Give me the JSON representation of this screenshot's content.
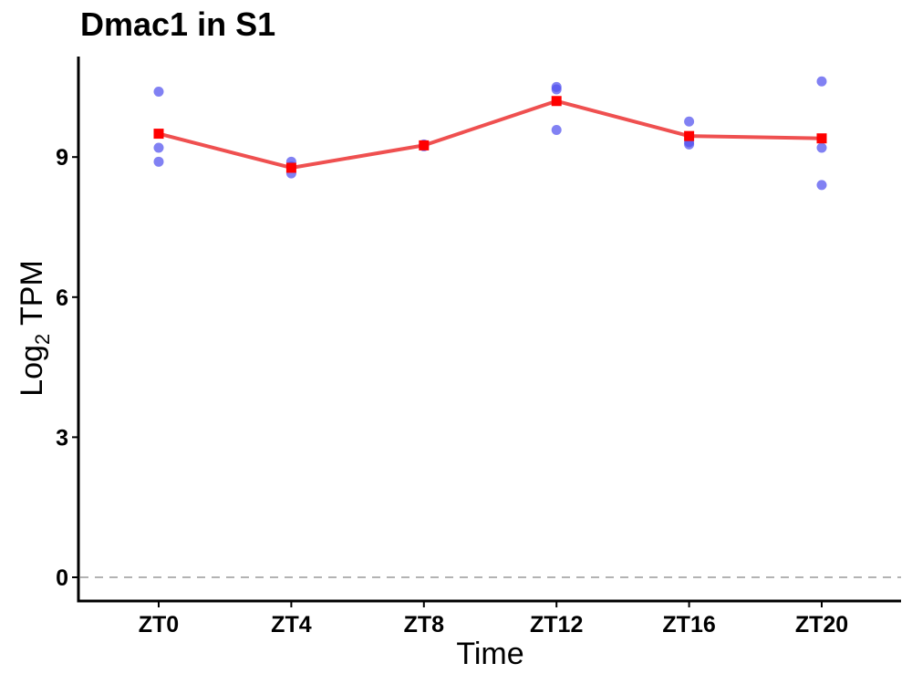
{
  "chart_data": {
    "type": "line",
    "title": "Dmac1 in S1",
    "xlabel": "Time",
    "ylabel": {
      "main": "Log",
      "subscript": "2",
      "suffix": " TPM"
    },
    "categories": [
      "ZT0",
      "ZT4",
      "ZT8",
      "ZT12",
      "ZT16",
      "ZT20"
    ],
    "ylim": [
      -0.5,
      11.1
    ],
    "yticks": [
      0,
      3,
      6,
      9
    ],
    "ytick_labels": [
      "0",
      "3",
      "6",
      "9"
    ],
    "reference_line": {
      "y": 0,
      "style": "dashed",
      "color": "#b3b3b3"
    },
    "series": [
      {
        "type": "line",
        "marker": "square",
        "color": "#ff0000",
        "line_color": "#ef5050",
        "values": [
          9.5,
          8.77,
          9.25,
          10.2,
          9.45,
          9.4
        ]
      },
      {
        "type": "scatter",
        "marker": "circle",
        "color": "#5050ee",
        "points": [
          {
            "x": "ZT0",
            "y": 10.4
          },
          {
            "x": "ZT0",
            "y": 9.2
          },
          {
            "x": "ZT0",
            "y": 8.9
          },
          {
            "x": "ZT4",
            "y": 8.9
          },
          {
            "x": "ZT4",
            "y": 8.8
          },
          {
            "x": "ZT4",
            "y": 8.65
          },
          {
            "x": "ZT8",
            "y": 9.25
          },
          {
            "x": "ZT8",
            "y": 9.27
          },
          {
            "x": "ZT8",
            "y": 9.23
          },
          {
            "x": "ZT12",
            "y": 10.5
          },
          {
            "x": "ZT12",
            "y": 10.45
          },
          {
            "x": "ZT12",
            "y": 9.58
          },
          {
            "x": "ZT16",
            "y": 9.76
          },
          {
            "x": "ZT16",
            "y": 9.32
          },
          {
            "x": "ZT16",
            "y": 9.27
          },
          {
            "x": "ZT20",
            "y": 10.62
          },
          {
            "x": "ZT20",
            "y": 9.2
          },
          {
            "x": "ZT20",
            "y": 8.4
          }
        ]
      }
    ],
    "grid": false,
    "legend": "none"
  }
}
